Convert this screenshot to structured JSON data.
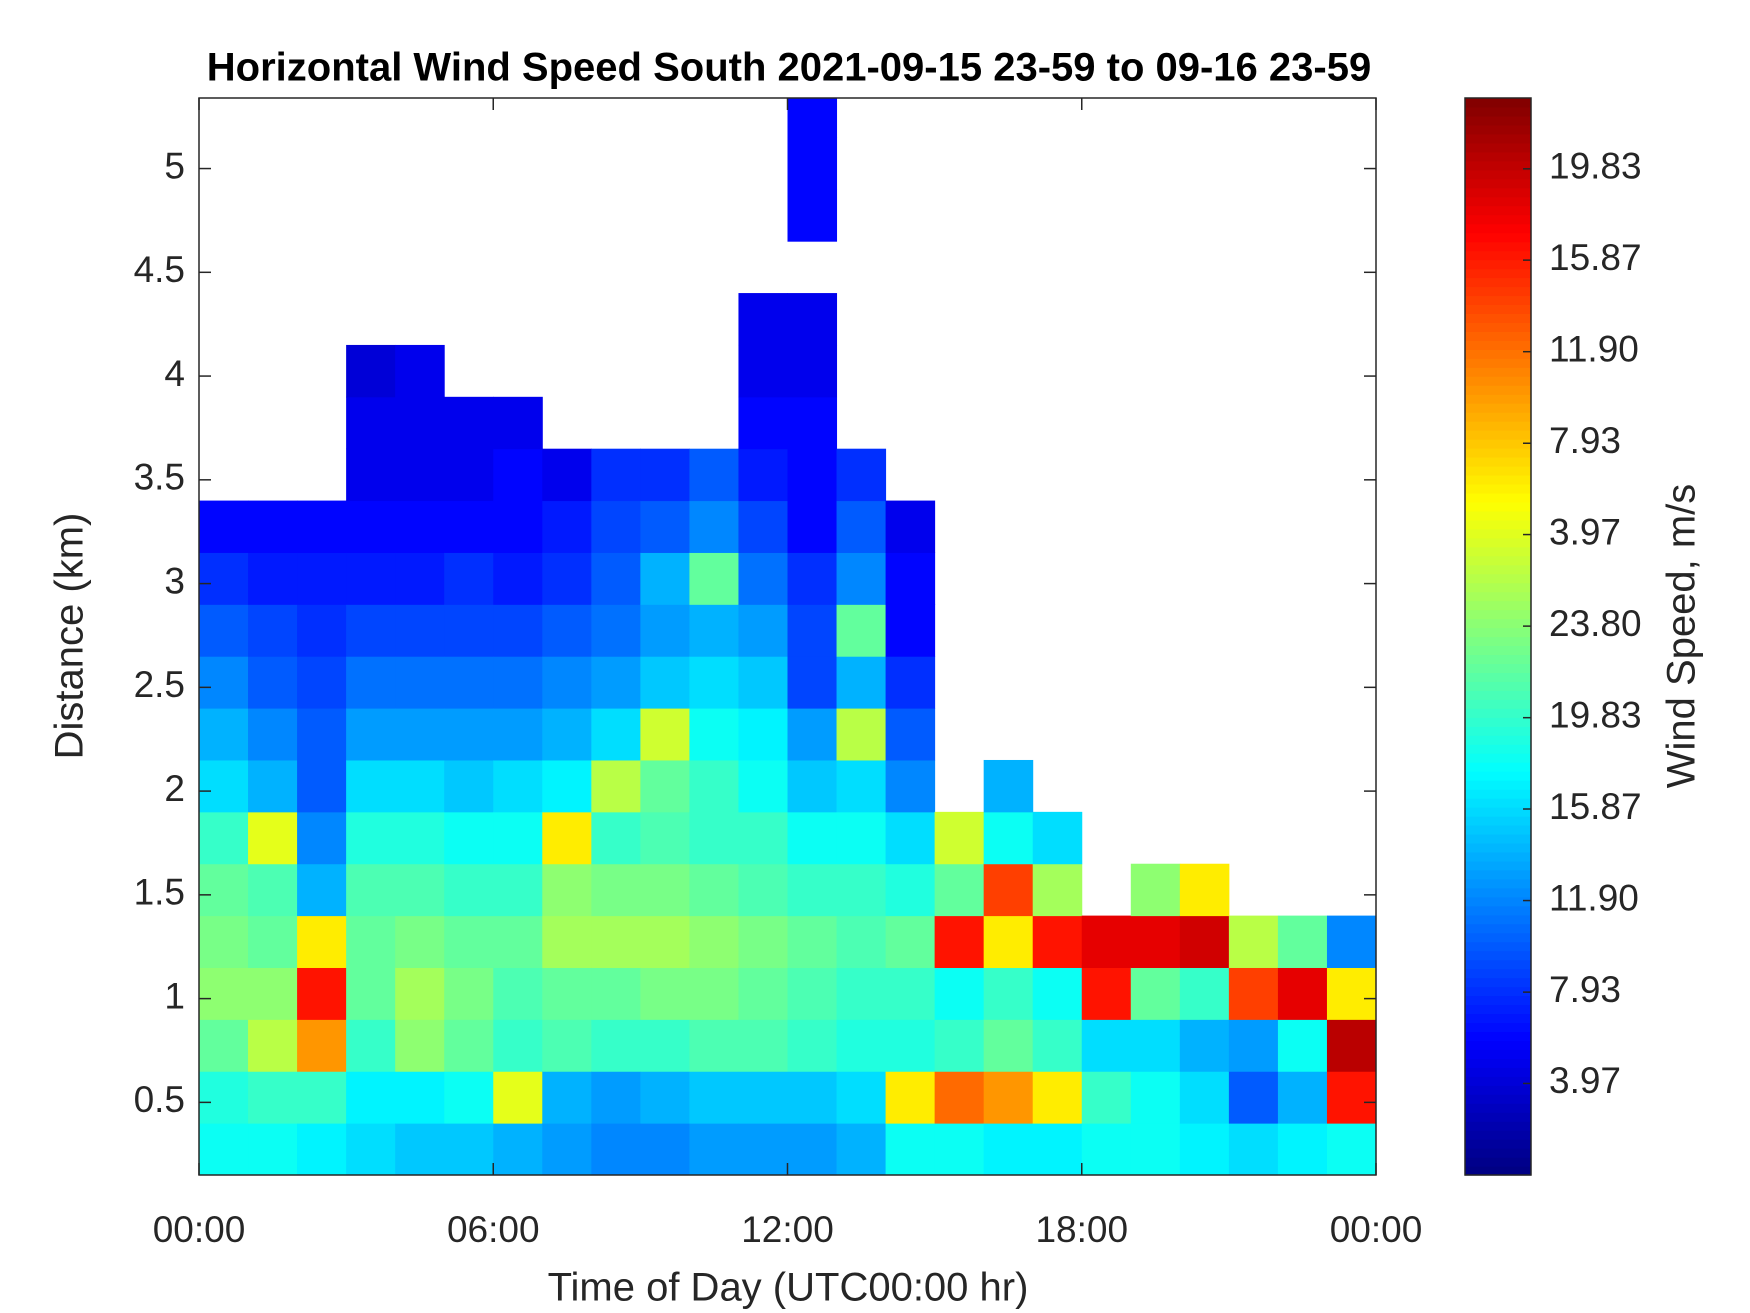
{
  "chart_data": {
    "type": "heatmap",
    "title": "Horizontal Wind Speed South 2021-09-15 23-59 to 09-16 23-59",
    "x_label": "Time of Day (UTC00:00 hr)",
    "y_label": "Distance (km)",
    "colorbar_label": "Wind Speed, m/s",
    "colormap": "jet",
    "xlim": [
      0,
      24
    ],
    "xticks": [
      {
        "value": 0,
        "label": "00:00"
      },
      {
        "value": 6,
        "label": "06:00"
      },
      {
        "value": 12,
        "label": "12:00"
      },
      {
        "value": 18,
        "label": "18:00"
      },
      {
        "value": 24,
        "label": "00:00"
      }
    ],
    "ylim": [
      0.15,
      5.34
    ],
    "yticks": [
      0.5,
      1,
      1.5,
      2,
      2.5,
      3,
      3.5,
      4,
      4.5,
      5
    ],
    "clim": [
      0,
      46.7
    ],
    "cticks": [
      3.97,
      7.93,
      {
        "value": 11.9,
        "label": "11.90"
      },
      15.87,
      19.83,
      {
        "value": 23.8,
        "label": "23.80"
      },
      {
        "value": 27.77,
        "label": "3.97"
      },
      {
        "value": 31.73,
        "label": "7.93"
      },
      {
        "value": 35.7,
        "label": "11.90"
      },
      {
        "value": 39.67,
        "label": "15.87"
      },
      {
        "value": 43.63,
        "label": "19.83"
      }
    ],
    "x": [
      0.5,
      1.5,
      2.5,
      3.5,
      4.5,
      5.5,
      6.5,
      7.5,
      8.5,
      9.5,
      10.5,
      11.5,
      12.5,
      13.5,
      14.5,
      15.5,
      16.5,
      17.5,
      18.5,
      19.5,
      20.5,
      21.5,
      22.5,
      23.5
    ],
    "y": [
      0.275,
      0.525,
      0.775,
      1.025,
      1.275,
      1.525,
      1.775,
      2.025,
      2.275,
      2.525,
      2.775,
      3.025,
      3.275,
      3.525,
      3.775,
      4.025,
      4.275,
      4.525,
      4.775,
      5.025,
      5.275
    ],
    "z": [
      [
        18,
        19,
        22,
        24,
        23,
        22,
        20,
        16,
        14,
        12,
        10,
        8,
        6,
        null,
        null,
        null,
        null,
        null,
        null,
        null,
        null
      ],
      [
        18,
        20,
        26,
        24,
        22,
        21,
        28,
        14,
        12,
        10,
        9,
        7,
        6,
        null,
        null,
        null,
        null,
        null,
        null,
        null,
        null
      ],
      [
        17,
        20,
        34,
        40,
        30,
        14,
        12,
        10,
        10,
        9,
        8,
        7,
        6,
        null,
        null,
        null,
        null,
        null,
        null,
        null,
        null
      ],
      [
        16,
        17,
        20,
        22,
        22,
        21,
        19,
        16,
        13,
        11,
        9,
        7,
        6,
        5,
        5,
        4,
        null,
        null,
        null,
        null,
        null
      ],
      [
        15,
        17,
        24,
        25,
        23,
        21,
        19,
        16,
        13,
        11,
        9,
        7,
        6,
        5,
        5,
        5,
        null,
        null,
        null,
        null,
        null
      ],
      [
        15,
        18,
        22,
        23,
        22,
        20,
        18,
        15,
        13,
        11,
        9,
        8,
        6,
        5,
        5,
        null,
        null,
        null,
        null,
        null,
        null
      ],
      [
        14,
        28,
        20,
        21,
        22,
        20,
        18,
        16,
        13,
        11,
        9,
        7,
        6,
        6,
        5,
        null,
        null,
        null,
        null,
        null,
        null
      ],
      [
        13,
        14,
        21,
        22,
        25,
        24,
        30,
        17,
        14,
        12,
        10,
        8,
        7,
        5,
        null,
        null,
        null,
        null,
        null,
        null,
        null
      ],
      [
        12,
        13,
        20,
        22,
        25,
        23,
        20,
        26,
        16,
        13,
        11,
        10,
        9,
        8,
        null,
        null,
        null,
        null,
        null,
        null,
        null
      ],
      [
        12,
        14,
        20,
        23,
        25,
        23,
        21,
        22,
        27,
        15,
        13,
        14,
        10,
        8,
        null,
        null,
        null,
        null,
        null,
        null,
        null
      ],
      [
        13,
        15,
        21,
        23,
        24,
        22,
        20,
        20,
        18,
        16,
        14,
        22,
        12,
        10,
        null,
        null,
        null,
        null,
        null,
        null,
        null
      ],
      [
        13,
        15,
        21,
        22,
        23,
        21,
        20,
        18,
        17,
        15,
        13,
        11,
        9,
        7,
        6,
        5,
        5,
        null,
        null,
        null,
        null
      ],
      [
        13,
        15,
        20,
        21,
        22,
        20,
        18,
        15,
        13,
        9,
        9,
        8,
        6,
        6,
        6,
        5,
        5,
        null,
        6,
        6,
        6
      ],
      [
        14,
        16,
        19,
        20,
        21,
        20,
        18,
        16,
        26,
        14,
        22,
        12,
        10,
        8,
        null,
        null,
        null,
        null,
        null,
        null,
        null
      ],
      [
        18,
        30,
        19,
        20,
        22,
        19,
        16,
        12,
        10,
        8,
        6,
        6,
        5,
        null,
        null,
        null,
        null,
        null,
        null,
        null,
        null
      ],
      [
        18,
        36,
        20,
        18,
        40,
        22,
        27,
        null,
        null,
        null,
        null,
        null,
        null,
        null,
        null,
        null,
        null,
        null,
        null,
        null,
        null
      ],
      [
        17,
        34,
        22,
        20,
        30,
        38,
        18,
        14,
        null,
        null,
        null,
        null,
        null,
        null,
        null,
        null,
        null,
        null,
        null,
        null,
        null
      ],
      [
        17,
        30,
        20,
        18,
        40,
        25,
        16,
        null,
        null,
        null,
        null,
        null,
        null,
        null,
        null,
        null,
        null,
        null,
        null,
        null,
        null
      ],
      [
        18,
        20,
        16,
        40,
        42,
        null,
        null,
        null,
        null,
        null,
        null,
        null,
        null,
        null,
        null,
        null,
        null,
        null,
        null,
        null,
        null
      ],
      [
        18,
        18,
        16,
        22,
        42,
        24,
        null,
        null,
        null,
        null,
        null,
        null,
        null,
        null,
        null,
        null,
        null,
        null,
        null,
        null,
        null
      ],
      [
        17,
        16,
        14,
        20,
        43,
        30,
        null,
        null,
        null,
        null,
        null,
        null,
        null,
        null,
        null,
        null,
        null,
        null,
        null,
        null,
        null
      ],
      [
        16,
        10,
        13,
        38,
        26,
        null,
        null,
        null,
        null,
        null,
        null,
        null,
        null,
        null,
        null,
        null,
        null,
        null,
        null,
        null,
        null
      ],
      [
        17,
        14,
        18,
        42,
        22,
        null,
        null,
        null,
        null,
        null,
        null,
        null,
        null,
        null,
        null,
        null,
        null,
        null,
        null,
        null,
        null
      ],
      [
        18,
        40,
        44,
        30,
        12,
        null,
        null,
        null,
        null,
        null,
        null,
        null,
        null,
        null,
        null,
        null,
        null,
        null,
        null,
        null,
        null
      ]
    ]
  }
}
